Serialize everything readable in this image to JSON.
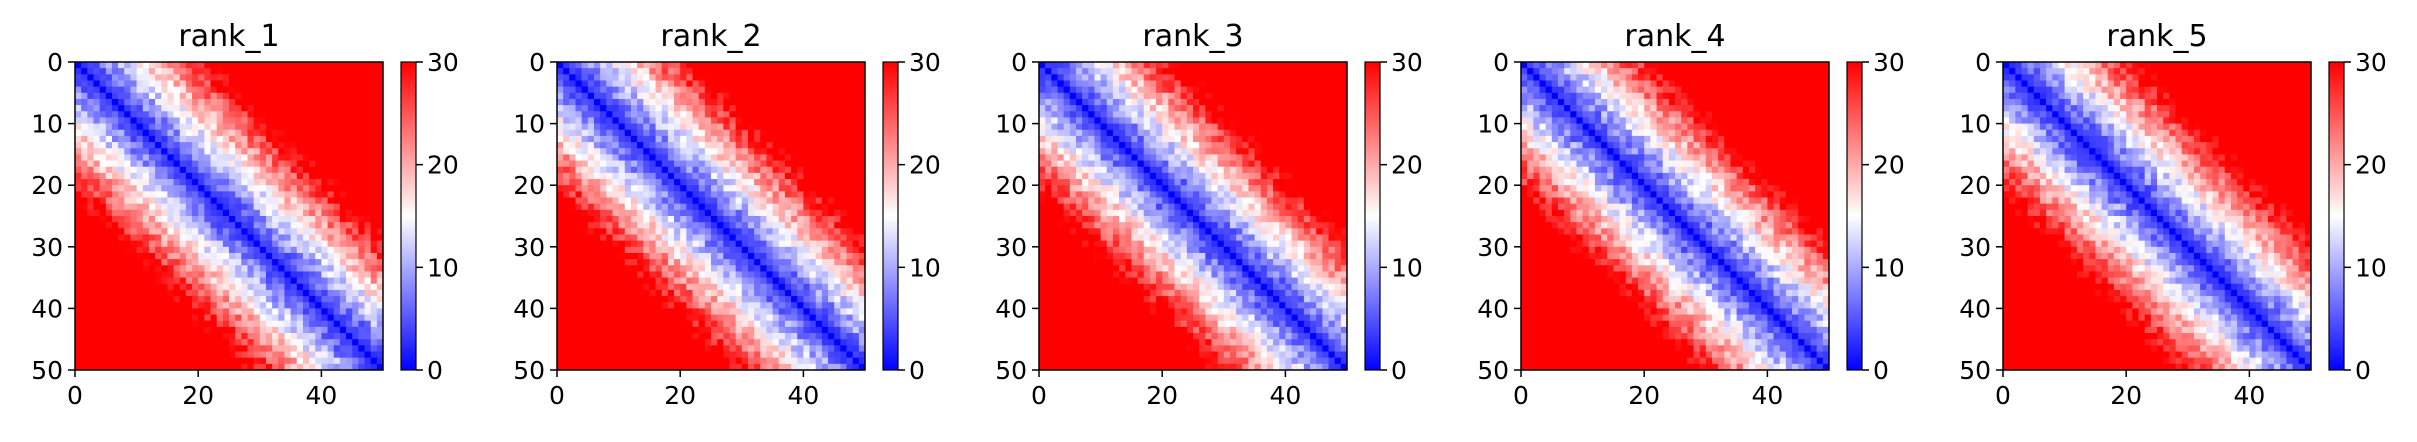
{
  "colormap": {
    "low": "#0000ff",
    "mid": "#ffffff",
    "high": "#ff0000",
    "vmin": 0,
    "vmax": 30
  },
  "chart_data": [
    {
      "type": "heatmap",
      "title": "rank_1",
      "size": 50,
      "xlim": [
        0,
        50
      ],
      "ylim": [
        50,
        0
      ],
      "x_ticks": [
        "0",
        "20",
        "40"
      ],
      "x_tick_values": [
        0,
        20,
        40
      ],
      "y_ticks": [
        "0",
        "10",
        "20",
        "30",
        "40",
        "50"
      ],
      "y_tick_values": [
        0,
        10,
        20,
        30,
        40,
        50
      ],
      "colorbar": {
        "min": 0,
        "max": 30,
        "ticks": [
          "0",
          "10",
          "20",
          "30"
        ],
        "tick_values": [
          0,
          10,
          20,
          30
        ]
      },
      "grid": false,
      "seed": 11
    },
    {
      "type": "heatmap",
      "title": "rank_2",
      "size": 50,
      "xlim": [
        0,
        50
      ],
      "ylim": [
        50,
        0
      ],
      "x_ticks": [
        "0",
        "20",
        "40"
      ],
      "x_tick_values": [
        0,
        20,
        40
      ],
      "y_ticks": [
        "0",
        "10",
        "20",
        "30",
        "40",
        "50"
      ],
      "y_tick_values": [
        0,
        10,
        20,
        30,
        40,
        50
      ],
      "colorbar": {
        "min": 0,
        "max": 30,
        "ticks": [
          "0",
          "10",
          "20",
          "30"
        ],
        "tick_values": [
          0,
          10,
          20,
          30
        ]
      },
      "grid": false,
      "seed": 23
    },
    {
      "type": "heatmap",
      "title": "rank_3",
      "size": 50,
      "xlim": [
        0,
        50
      ],
      "ylim": [
        50,
        0
      ],
      "x_ticks": [
        "0",
        "20",
        "40"
      ],
      "x_tick_values": [
        0,
        20,
        40
      ],
      "y_ticks": [
        "0",
        "10",
        "20",
        "30",
        "40",
        "50"
      ],
      "y_tick_values": [
        0,
        10,
        20,
        30,
        40,
        50
      ],
      "colorbar": {
        "min": 0,
        "max": 30,
        "ticks": [
          "0",
          "10",
          "20",
          "30"
        ],
        "tick_values": [
          0,
          10,
          20,
          30
        ]
      },
      "grid": false,
      "seed": 37
    },
    {
      "type": "heatmap",
      "title": "rank_4",
      "size": 50,
      "xlim": [
        0,
        50
      ],
      "ylim": [
        50,
        0
      ],
      "x_ticks": [
        "0",
        "20",
        "40"
      ],
      "x_tick_values": [
        0,
        20,
        40
      ],
      "y_ticks": [
        "0",
        "10",
        "20",
        "30",
        "40",
        "50"
      ],
      "y_tick_values": [
        0,
        10,
        20,
        30,
        40,
        50
      ],
      "colorbar": {
        "min": 0,
        "max": 30,
        "ticks": [
          "0",
          "10",
          "20",
          "30"
        ],
        "tick_values": [
          0,
          10,
          20,
          30
        ]
      },
      "grid": false,
      "seed": 41
    },
    {
      "type": "heatmap",
      "title": "rank_5",
      "size": 50,
      "xlim": [
        0,
        50
      ],
      "ylim": [
        50,
        0
      ],
      "x_ticks": [
        "0",
        "20",
        "40"
      ],
      "x_tick_values": [
        0,
        20,
        40
      ],
      "y_ticks": [
        "0",
        "10",
        "20",
        "30",
        "40",
        "50"
      ],
      "y_tick_values": [
        0,
        10,
        20,
        30,
        40,
        50
      ],
      "colorbar": {
        "min": 0,
        "max": 30,
        "ticks": [
          "0",
          "10",
          "20",
          "30"
        ],
        "tick_values": [
          0,
          10,
          20,
          30
        ]
      },
      "grid": false,
      "seed": 53
    }
  ]
}
